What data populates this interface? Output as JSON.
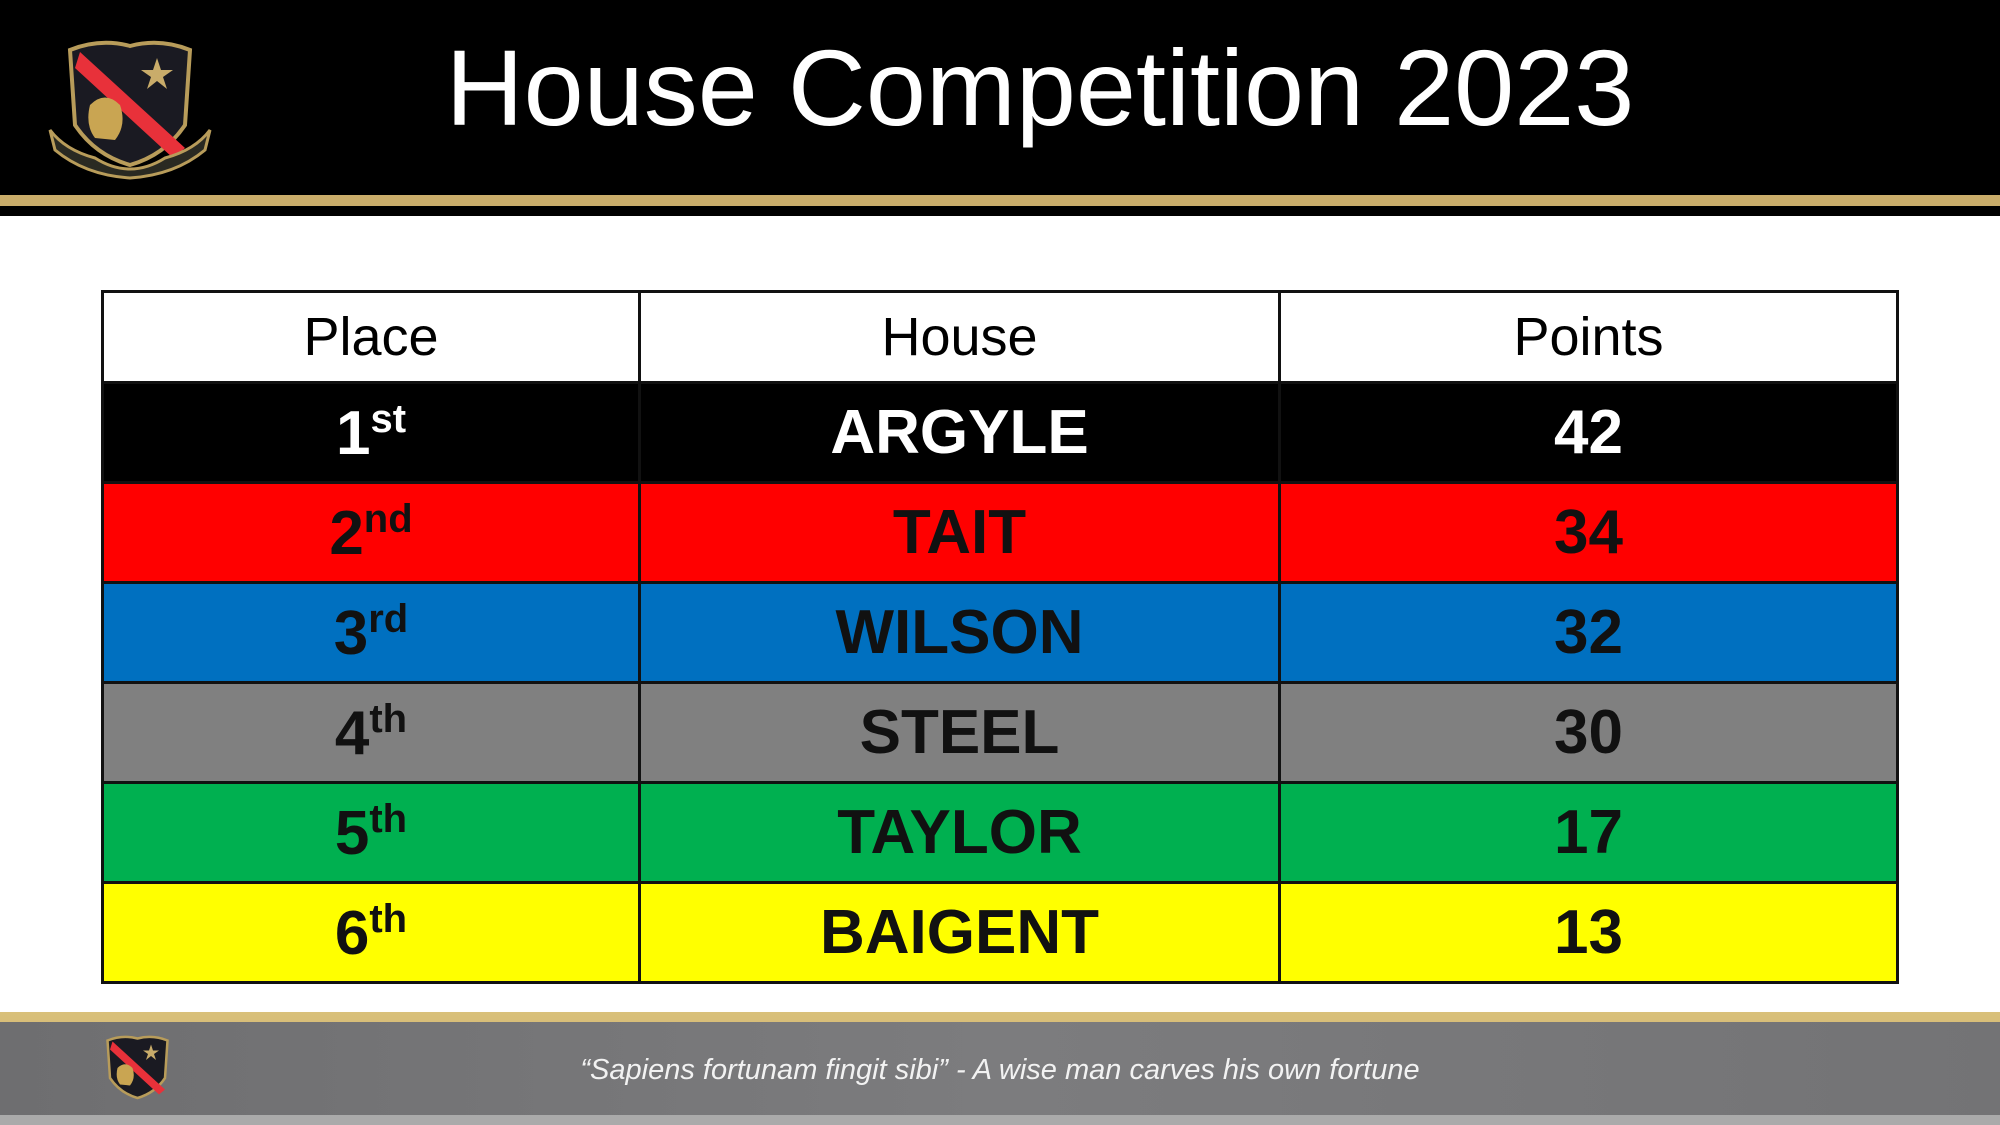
{
  "header": {
    "title": "House Competition 2023",
    "logo": "school-crest"
  },
  "table": {
    "columns": [
      "Place",
      "House",
      "Points"
    ],
    "rows": [
      {
        "place": "1",
        "suffix": "st",
        "house": "ARGYLE",
        "points": "42",
        "bg": "#000000",
        "fg": "#ffffff"
      },
      {
        "place": "2",
        "suffix": "nd",
        "house": "TAIT",
        "points": "34",
        "bg": "#ff0000",
        "fg": "#111111"
      },
      {
        "place": "3",
        "suffix": "rd",
        "house": "WILSON",
        "points": "32",
        "bg": "#0070c0",
        "fg": "#111111"
      },
      {
        "place": "4",
        "suffix": "th",
        "house": "STEEL",
        "points": "30",
        "bg": "#808080",
        "fg": "#111111"
      },
      {
        "place": "5",
        "suffix": "th",
        "house": "TAYLOR",
        "points": "17",
        "bg": "#00b050",
        "fg": "#111111"
      },
      {
        "place": "6",
        "suffix": "th",
        "house": "BAIGENT",
        "points": "13",
        "bg": "#ffff00",
        "fg": "#111111"
      }
    ]
  },
  "footer": {
    "motto": "“Sapiens fortunam fingit sibi” - A wise man carves his own fortune"
  }
}
